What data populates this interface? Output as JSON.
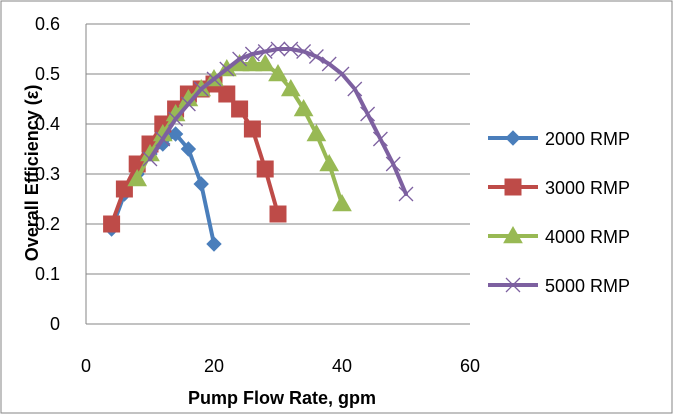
{
  "chart_data": {
    "type": "scatter",
    "title": "",
    "xlabel": "Pump Flow Rate, gpm",
    "ylabel": "Overall Efficiency (ε)",
    "xlim": [
      0,
      60
    ],
    "ylim": [
      0,
      0.6
    ],
    "x_ticks": [
      "0",
      "20",
      "40",
      "60"
    ],
    "y_ticks": [
      "0",
      "0.1",
      "0.2",
      "0.3",
      "0.4",
      "0.5",
      "0.6"
    ],
    "grid": "horizontal",
    "legend_position": "right",
    "series": [
      {
        "name": "2000 RMP",
        "color": "#4a7ebb",
        "marker": "diamond",
        "x": [
          4,
          6,
          8,
          10,
          12,
          14,
          16,
          18,
          20
        ],
        "y": [
          0.19,
          0.26,
          0.3,
          0.34,
          0.36,
          0.38,
          0.35,
          0.28,
          0.16
        ]
      },
      {
        "name": "3000 RMP",
        "color": "#be4b48",
        "marker": "square",
        "x": [
          4,
          6,
          8,
          10,
          12,
          14,
          16,
          18,
          20,
          22,
          24,
          26,
          28,
          30
        ],
        "y": [
          0.2,
          0.27,
          0.32,
          0.36,
          0.4,
          0.43,
          0.46,
          0.47,
          0.48,
          0.46,
          0.43,
          0.39,
          0.31,
          0.22
        ]
      },
      {
        "name": "4000 RMP",
        "color": "#98b954",
        "marker": "triangle",
        "x": [
          8,
          10,
          12,
          14,
          16,
          18,
          20,
          22,
          24,
          26,
          28,
          30,
          32,
          34,
          36,
          38,
          40
        ],
        "y": [
          0.29,
          0.34,
          0.38,
          0.42,
          0.45,
          0.47,
          0.49,
          0.51,
          0.52,
          0.52,
          0.52,
          0.5,
          0.47,
          0.43,
          0.38,
          0.32,
          0.24
        ]
      },
      {
        "name": "5000 RMP",
        "color": "#7d60a0",
        "marker": "x",
        "x": [
          10,
          12,
          14,
          16,
          18,
          20,
          22,
          24,
          26,
          28,
          30,
          32,
          34,
          36,
          38,
          40,
          42,
          44,
          46,
          48,
          50
        ],
        "y": [
          0.33,
          0.37,
          0.41,
          0.44,
          0.47,
          0.49,
          0.51,
          0.53,
          0.54,
          0.545,
          0.55,
          0.55,
          0.545,
          0.535,
          0.52,
          0.5,
          0.47,
          0.42,
          0.37,
          0.32,
          0.26
        ]
      }
    ]
  }
}
